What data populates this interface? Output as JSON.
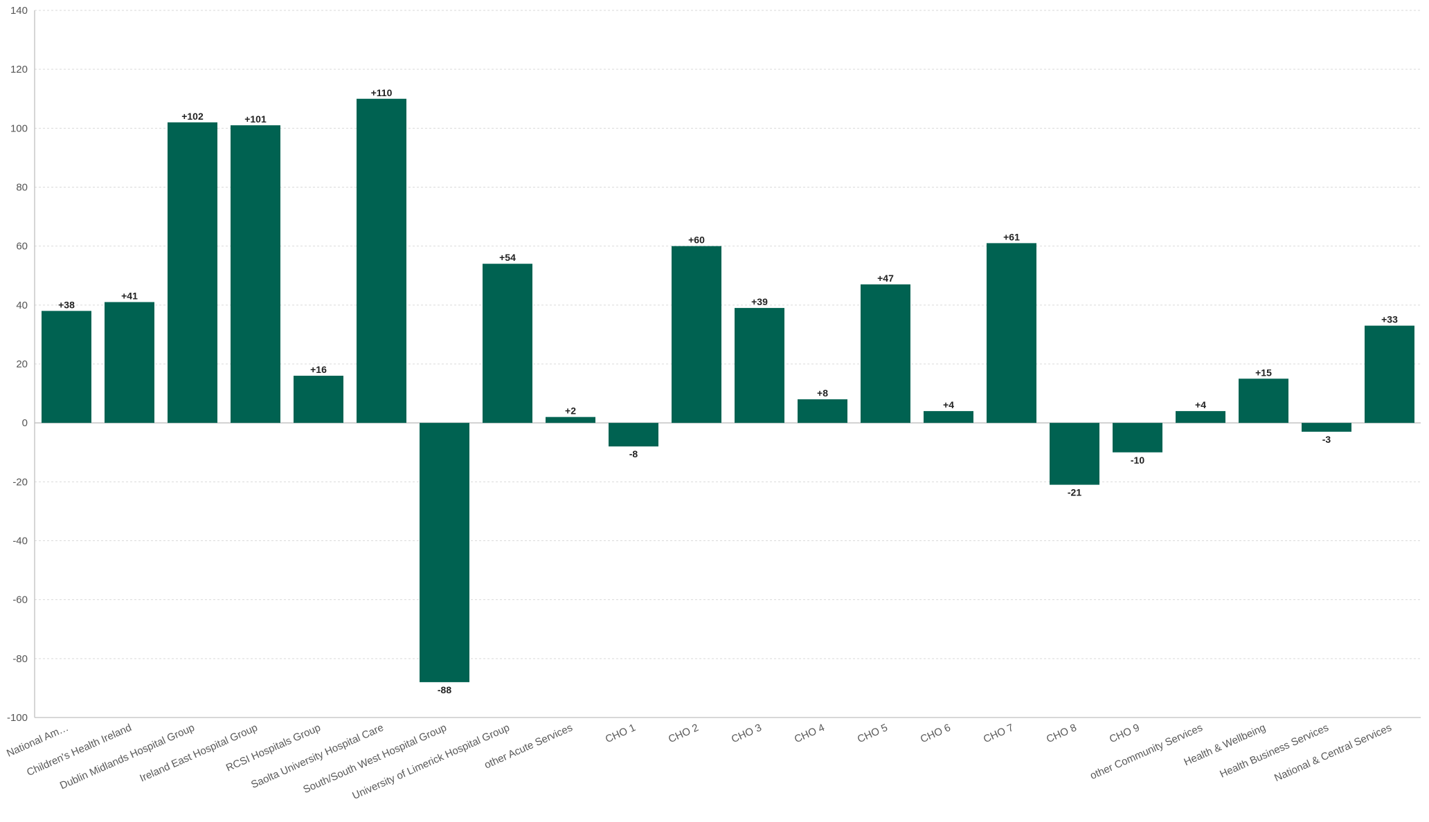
{
  "chart_data": {
    "type": "bar",
    "title": "",
    "xlabel": "",
    "ylabel": "",
    "ylim": [
      -100,
      140
    ],
    "yticks": [
      140,
      120,
      100,
      80,
      60,
      40,
      20,
      0,
      -20,
      -40,
      -60,
      -80,
      -100
    ],
    "grid": true,
    "bar_color": "#006251",
    "categories": [
      "National Am…",
      "Children's Health Ireland",
      "Dublin Midlands Hospital Group",
      "Ireland East Hospital Group",
      "RCSI Hospitals Group",
      "Saolta University Hospital Care",
      "South/South West Hospital Group",
      "University of Limerick Hospital Group",
      "other Acute Services",
      "CHO 1",
      "CHO 2",
      "CHO 3",
      "CHO 4",
      "CHO 5",
      "CHO 6",
      "CHO 7",
      "CHO 8",
      "CHO 9",
      "other Community Services",
      "Health & Wellbeing",
      "Health Business Services",
      "National & Central Services"
    ],
    "values": [
      38,
      41,
      102,
      101,
      16,
      110,
      -88,
      54,
      2,
      -8,
      60,
      39,
      8,
      47,
      4,
      61,
      -21,
      -10,
      4,
      15,
      -3,
      33
    ],
    "labels": [
      "+38",
      "+41",
      "+102",
      "+101",
      "+16",
      "+110",
      "-88",
      "+54",
      "+2",
      "-8",
      "+60",
      "+39",
      "+8",
      "+47",
      "+4",
      "+61",
      "-21",
      "-10",
      "+4",
      "+15",
      "-3",
      "+33"
    ]
  }
}
